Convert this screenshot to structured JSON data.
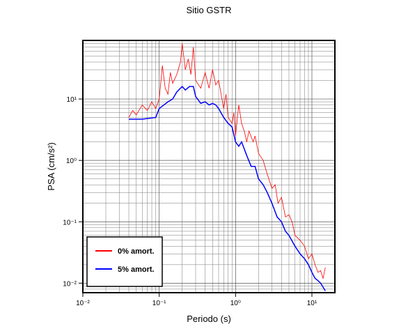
{
  "chart_data": {
    "type": "line",
    "title": "Sitio GSTR",
    "xlabel": "Periodo (s)",
    "ylabel": "PSA (cm/s²)",
    "xscale": "log",
    "yscale": "log",
    "grid": true,
    "legend_loc": "lower left",
    "xlim": [
      0.01,
      20
    ],
    "ylim": [
      0.007,
      90
    ],
    "xticks": [
      {
        "value": 0.01,
        "label": "10⁻²"
      },
      {
        "value": 0.1,
        "label": "10⁻¹"
      },
      {
        "value": 1,
        "label": "10⁰"
      },
      {
        "value": 10,
        "label": "10¹"
      }
    ],
    "yticks": [
      {
        "value": 0.01,
        "label": "10⁻²"
      },
      {
        "value": 0.1,
        "label": "10⁻¹"
      },
      {
        "value": 1,
        "label": "10⁰"
      },
      {
        "value": 10,
        "label": "10¹"
      }
    ],
    "series": [
      {
        "name": "0% amort.",
        "color": "#ff0000",
        "x": [
          0.04,
          0.045,
          0.05,
          0.06,
          0.07,
          0.08,
          0.09,
          0.1,
          0.11,
          0.12,
          0.13,
          0.14,
          0.15,
          0.17,
          0.19,
          0.2,
          0.22,
          0.24,
          0.26,
          0.28,
          0.3,
          0.35,
          0.4,
          0.45,
          0.5,
          0.55,
          0.6,
          0.7,
          0.75,
          0.8,
          0.9,
          0.95,
          1.0,
          1.1,
          1.2,
          1.3,
          1.4,
          1.5,
          1.7,
          1.8,
          2,
          2.3,
          2.6,
          3,
          3.3,
          3.6,
          4,
          4.5,
          5,
          5.5,
          6,
          7,
          8,
          9,
          10,
          11,
          12,
          13,
          14,
          15
        ],
        "values": [
          5,
          6.5,
          5.5,
          8,
          6.5,
          9,
          7,
          10,
          35,
          15,
          12,
          27,
          18,
          25,
          40,
          80,
          30,
          45,
          25,
          70,
          20,
          15,
          27,
          15,
          30,
          17,
          20,
          7,
          12,
          5,
          4,
          6,
          2.5,
          8,
          4,
          3,
          2,
          3,
          2,
          2.5,
          1.3,
          1,
          0.6,
          0.35,
          0.4,
          0.2,
          0.25,
          0.12,
          0.13,
          0.1,
          0.06,
          0.05,
          0.04,
          0.025,
          0.03,
          0.02,
          0.015,
          0.016,
          0.012,
          0.018
        ]
      },
      {
        "name": "5% amort.",
        "color": "#0000ff",
        "x": [
          0.04,
          0.06,
          0.09,
          0.1,
          0.13,
          0.15,
          0.17,
          0.2,
          0.22,
          0.25,
          0.28,
          0.3,
          0.35,
          0.4,
          0.45,
          0.5,
          0.55,
          0.6,
          0.7,
          0.8,
          0.9,
          1.0,
          1.1,
          1.2,
          1.4,
          1.6,
          1.8,
          2,
          2.3,
          2.6,
          3,
          3.5,
          4,
          4.5,
          5,
          6,
          7,
          8,
          9,
          10,
          11,
          12,
          13,
          15
        ],
        "values": [
          4.7,
          4.7,
          5,
          7,
          9,
          10,
          13,
          16,
          14,
          16,
          16,
          11,
          8.5,
          9,
          8,
          8.5,
          8,
          7,
          5,
          4,
          3.5,
          2,
          1.7,
          2,
          1.2,
          0.8,
          0.8,
          0.5,
          0.4,
          0.3,
          0.2,
          0.12,
          0.1,
          0.07,
          0.06,
          0.04,
          0.03,
          0.025,
          0.02,
          0.015,
          0.012,
          0.011,
          0.01,
          0.0075
        ]
      }
    ]
  }
}
